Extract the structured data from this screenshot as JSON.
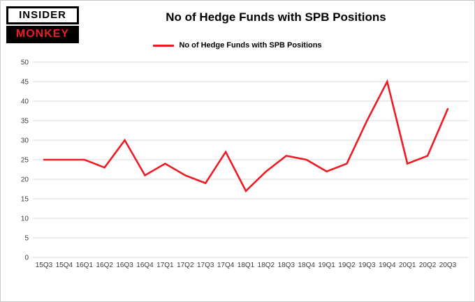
{
  "logo": {
    "line1": "INSIDER",
    "line2": "MONKEY"
  },
  "header": {
    "title": "No of Hedge Funds with SPB Positions"
  },
  "legend": {
    "label": "No of Hedge Funds with SPB Positions"
  },
  "colors": {
    "line": "#ed1c24",
    "logo_red": "#ed1c24",
    "grid": "#d8d8d8",
    "axis_text": "#3c3c3c",
    "background": "#ffffff"
  },
  "chart_data": {
    "type": "line",
    "title": "No of Hedge Funds with SPB Positions",
    "categories": [
      "15Q3",
      "15Q4",
      "16Q1",
      "16Q2",
      "16Q3",
      "16Q4",
      "17Q1",
      "17Q2",
      "17Q3",
      "17Q4",
      "18Q1",
      "18Q2",
      "18Q3",
      "18Q4",
      "19Q1",
      "19Q2",
      "19Q3",
      "19Q4",
      "20Q1",
      "20Q2",
      "20Q3"
    ],
    "series": [
      {
        "name": "No of Hedge Funds with SPB Positions",
        "color": "#ed1c24",
        "values": [
          25,
          25,
          25,
          23,
          30,
          21,
          24,
          21,
          19,
          27,
          17,
          22,
          26,
          25,
          22,
          24,
          35,
          45,
          24,
          26,
          38
        ]
      }
    ],
    "xlabel": "",
    "ylabel": "",
    "ylim": [
      0,
      50
    ],
    "ytick_step": 5,
    "grid": true,
    "legend_position": "top"
  }
}
